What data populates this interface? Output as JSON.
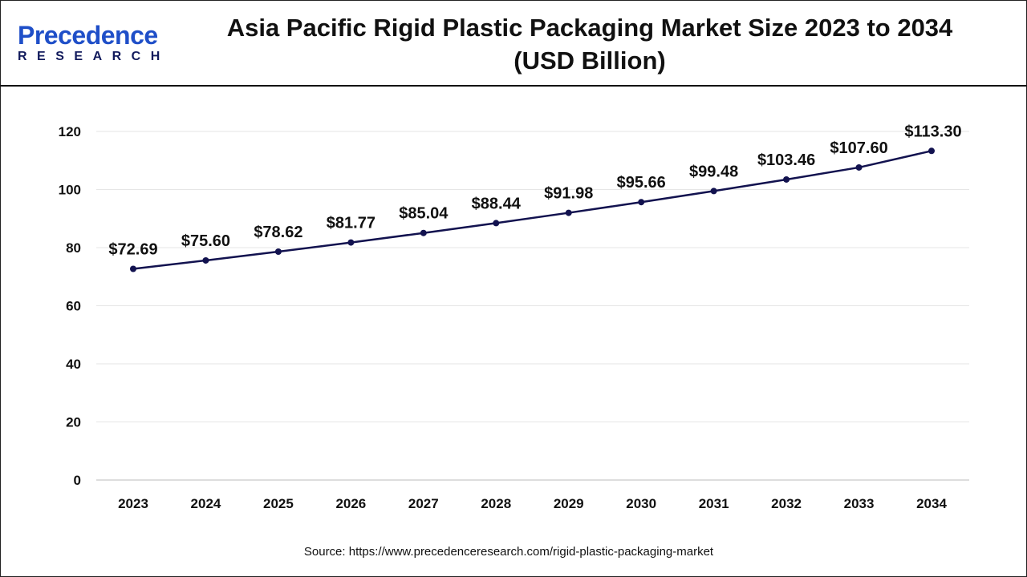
{
  "logo": {
    "main": "Precedence",
    "sub": "RESEARCH"
  },
  "chart_data": {
    "type": "line",
    "title": "Asia Pacific Rigid Plastic Packaging Market Size 2023 to 2034",
    "subtitle": "(USD Billion)",
    "categories": [
      "2023",
      "2024",
      "2025",
      "2026",
      "2027",
      "2028",
      "2029",
      "2030",
      "2031",
      "2032",
      "2033",
      "2034"
    ],
    "values": [
      72.69,
      75.6,
      78.62,
      81.77,
      85.04,
      88.44,
      91.98,
      95.66,
      99.48,
      103.46,
      107.6,
      113.3
    ],
    "data_labels": [
      "$72.69",
      "$75.60",
      "$78.62",
      "$81.77",
      "$85.04",
      "$88.44",
      "$91.98",
      "$95.66",
      "$99.48",
      "$103.46",
      "$107.60",
      "$113.30"
    ],
    "ylim": [
      0,
      120
    ],
    "yticks": [
      0,
      20,
      40,
      60,
      80,
      100,
      120
    ],
    "grid": true,
    "line_color": "#12124f",
    "xlabel": "",
    "ylabel": ""
  },
  "source": "Source: https://www.precedenceresearch.com/rigid-plastic-packaging-market"
}
